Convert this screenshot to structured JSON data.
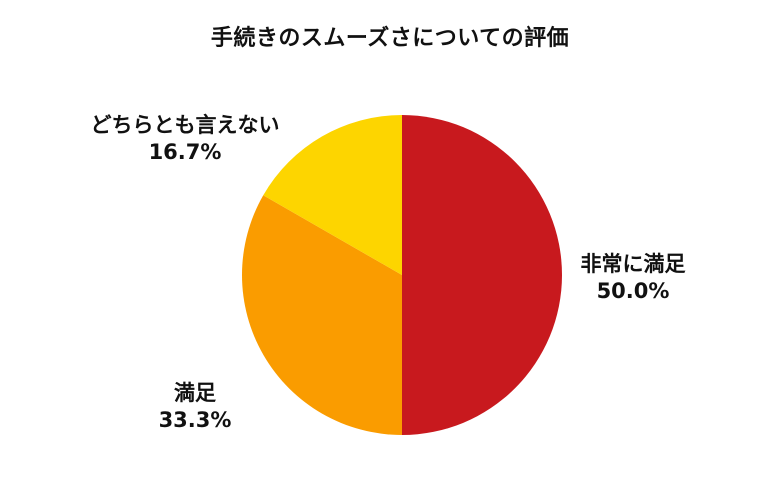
{
  "chart_data": {
    "type": "pie",
    "title": "手続きのスムーズさについての評価",
    "slices": [
      {
        "label": "非常に満足",
        "value": 50.0,
        "value_label": "50.0%",
        "color": "#c8191e"
      },
      {
        "label": "満足",
        "value": 33.3,
        "value_label": "33.3%",
        "color": "#fa9c00"
      },
      {
        "label": "どちらとも言えない",
        "value": 16.7,
        "value_label": "16.7%",
        "color": "#fdd500"
      }
    ],
    "start_angle": "12 o'clock",
    "direction": "clockwise",
    "legend": "none"
  }
}
